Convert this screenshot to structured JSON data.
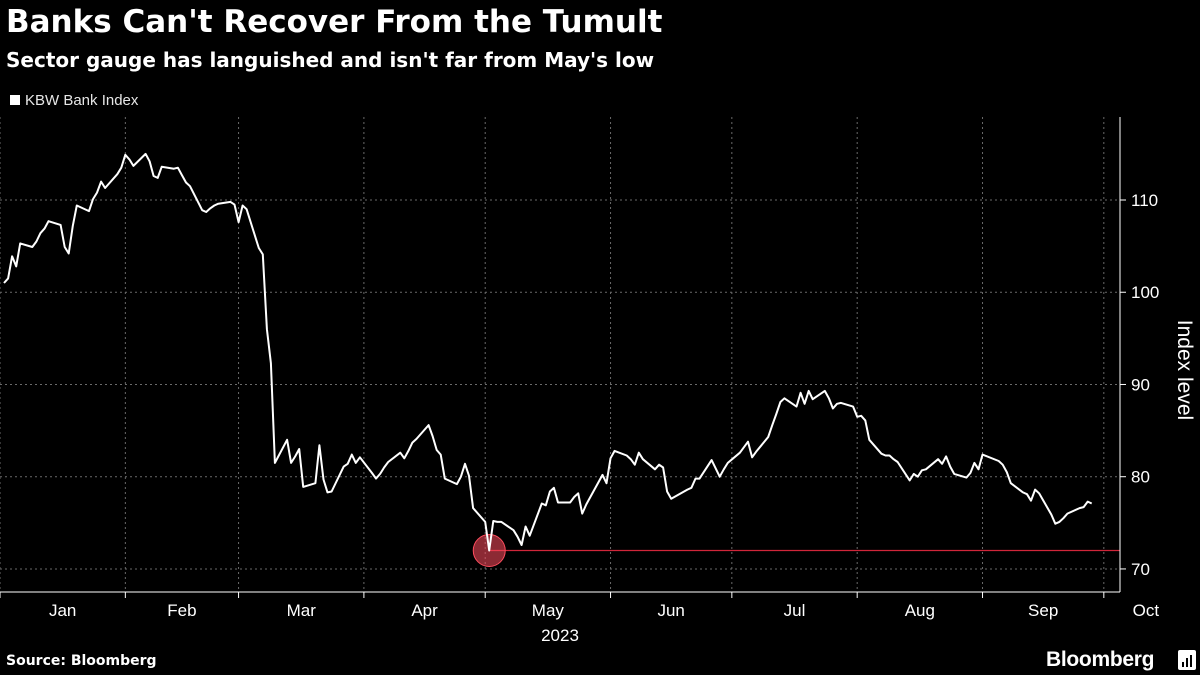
{
  "title": "Banks Can't Recover From the Tumult",
  "subtitle": "Sector gauge has languished and isn't far from May's low",
  "legend": {
    "label": "KBW Bank Index",
    "swatch_color": "#ffffff"
  },
  "footer": {
    "source": "Source: Bloomberg",
    "brand": "Bloomberg",
    "brand_icon": "bloomberg-terminal-icon"
  },
  "chart_data": {
    "type": "line",
    "title": "Banks Can't Recover From the Tumult",
    "subtitle": "Sector gauge has languished and isn't far from May's low",
    "series": [
      {
        "name": "KBW Bank Index",
        "color": "#ffffff",
        "points": [
          [
            "2023-01-02",
            101.0
          ],
          [
            "2023-01-03",
            101.5
          ],
          [
            "2023-01-04",
            103.9
          ],
          [
            "2023-01-05",
            102.8
          ],
          [
            "2023-01-06",
            105.3
          ],
          [
            "2023-01-09",
            104.9
          ],
          [
            "2023-01-10",
            105.5
          ],
          [
            "2023-01-11",
            106.4
          ],
          [
            "2023-01-12",
            106.9
          ],
          [
            "2023-01-13",
            107.7
          ],
          [
            "2023-01-16",
            107.3
          ],
          [
            "2023-01-17",
            104.9
          ],
          [
            "2023-01-18",
            104.2
          ],
          [
            "2023-01-19",
            107.2
          ],
          [
            "2023-01-20",
            109.4
          ],
          [
            "2023-01-23",
            108.8
          ],
          [
            "2023-01-24",
            110.1
          ],
          [
            "2023-01-25",
            110.8
          ],
          [
            "2023-01-26",
            112.0
          ],
          [
            "2023-01-27",
            111.3
          ],
          [
            "2023-01-30",
            112.8
          ],
          [
            "2023-01-31",
            113.5
          ],
          [
            "2023-02-01",
            114.9
          ],
          [
            "2023-02-02",
            114.4
          ],
          [
            "2023-02-03",
            113.7
          ],
          [
            "2023-02-06",
            115.0
          ],
          [
            "2023-02-07",
            114.2
          ],
          [
            "2023-02-08",
            112.6
          ],
          [
            "2023-02-09",
            112.4
          ],
          [
            "2023-02-10",
            113.6
          ],
          [
            "2023-02-13",
            113.4
          ],
          [
            "2023-02-14",
            113.5
          ],
          [
            "2023-02-15",
            112.7
          ],
          [
            "2023-02-16",
            111.9
          ],
          [
            "2023-02-17",
            111.5
          ],
          [
            "2023-02-20",
            108.9
          ],
          [
            "2023-02-21",
            108.7
          ],
          [
            "2023-02-22",
            109.1
          ],
          [
            "2023-02-23",
            109.4
          ],
          [
            "2023-02-24",
            109.6
          ],
          [
            "2023-02-27",
            109.8
          ],
          [
            "2023-02-28",
            109.5
          ],
          [
            "2023-03-01",
            107.6
          ],
          [
            "2023-03-02",
            109.4
          ],
          [
            "2023-03-03",
            109.0
          ],
          [
            "2023-03-06",
            104.8
          ],
          [
            "2023-03-07",
            104.1
          ],
          [
            "2023-03-08",
            96.0
          ],
          [
            "2023-03-09",
            92.3
          ],
          [
            "2023-03-10",
            81.5
          ],
          [
            "2023-03-13",
            84.0
          ],
          [
            "2023-03-14",
            81.5
          ],
          [
            "2023-03-15",
            82.2
          ],
          [
            "2023-03-16",
            83.0
          ],
          [
            "2023-03-17",
            78.9
          ],
          [
            "2023-03-20",
            79.3
          ],
          [
            "2023-03-21",
            83.4
          ],
          [
            "2023-03-22",
            79.7
          ],
          [
            "2023-03-23",
            78.3
          ],
          [
            "2023-03-24",
            78.4
          ],
          [
            "2023-03-27",
            81.1
          ],
          [
            "2023-03-28",
            81.4
          ],
          [
            "2023-03-29",
            82.4
          ],
          [
            "2023-03-30",
            81.5
          ],
          [
            "2023-03-31",
            82.1
          ],
          [
            "2023-04-03",
            80.4
          ],
          [
            "2023-04-04",
            79.8
          ],
          [
            "2023-04-05",
            80.3
          ],
          [
            "2023-04-06",
            81.0
          ],
          [
            "2023-04-07",
            81.6
          ],
          [
            "2023-04-10",
            82.6
          ],
          [
            "2023-04-11",
            82.0
          ],
          [
            "2023-04-12",
            82.8
          ],
          [
            "2023-04-13",
            83.7
          ],
          [
            "2023-04-14",
            84.1
          ],
          [
            "2023-04-17",
            85.6
          ],
          [
            "2023-04-18",
            84.4
          ],
          [
            "2023-04-19",
            82.9
          ],
          [
            "2023-04-20",
            82.4
          ],
          [
            "2023-04-21",
            79.8
          ],
          [
            "2023-04-24",
            79.2
          ],
          [
            "2023-04-25",
            80.0
          ],
          [
            "2023-04-26",
            81.4
          ],
          [
            "2023-04-27",
            80.1
          ],
          [
            "2023-04-28",
            76.6
          ],
          [
            "2023-05-01",
            75.1
          ],
          [
            "2023-05-02",
            72.0
          ],
          [
            "2023-05-03",
            75.2
          ],
          [
            "2023-05-04",
            75.1
          ],
          [
            "2023-05-05",
            75.1
          ],
          [
            "2023-05-08",
            74.2
          ],
          [
            "2023-05-09",
            73.5
          ],
          [
            "2023-05-10",
            72.6
          ],
          [
            "2023-05-11",
            74.6
          ],
          [
            "2023-05-12",
            73.6
          ],
          [
            "2023-05-15",
            77.1
          ],
          [
            "2023-05-16",
            76.9
          ],
          [
            "2023-05-17",
            78.4
          ],
          [
            "2023-05-18",
            78.8
          ],
          [
            "2023-05-19",
            77.2
          ],
          [
            "2023-05-22",
            77.2
          ],
          [
            "2023-05-23",
            77.8
          ],
          [
            "2023-05-24",
            78.2
          ],
          [
            "2023-05-25",
            76.0
          ],
          [
            "2023-05-26",
            77.0
          ],
          [
            "2023-05-30",
            80.2
          ],
          [
            "2023-05-31",
            79.3
          ],
          [
            "2023-06-01",
            82.0
          ],
          [
            "2023-06-02",
            82.8
          ],
          [
            "2023-06-05",
            82.3
          ],
          [
            "2023-06-06",
            81.9
          ],
          [
            "2023-06-07",
            81.3
          ],
          [
            "2023-06-08",
            82.6
          ],
          [
            "2023-06-09",
            81.9
          ],
          [
            "2023-06-12",
            80.8
          ],
          [
            "2023-06-13",
            81.3
          ],
          [
            "2023-06-14",
            81.0
          ],
          [
            "2023-06-15",
            78.4
          ],
          [
            "2023-06-16",
            77.6
          ],
          [
            "2023-06-20",
            78.6
          ],
          [
            "2023-06-21",
            78.8
          ],
          [
            "2023-06-22",
            79.8
          ],
          [
            "2023-06-23",
            79.8
          ],
          [
            "2023-06-26",
            81.8
          ],
          [
            "2023-06-27",
            80.9
          ],
          [
            "2023-06-28",
            80.0
          ],
          [
            "2023-06-29",
            80.8
          ],
          [
            "2023-06-30",
            81.5
          ],
          [
            "2023-07-03",
            82.6
          ],
          [
            "2023-07-05",
            83.8
          ],
          [
            "2023-07-06",
            82.1
          ],
          [
            "2023-07-07",
            82.7
          ],
          [
            "2023-07-10",
            84.3
          ],
          [
            "2023-07-11",
            85.6
          ],
          [
            "2023-07-12",
            86.8
          ],
          [
            "2023-07-13",
            88.1
          ],
          [
            "2023-07-14",
            88.5
          ],
          [
            "2023-07-17",
            87.6
          ],
          [
            "2023-07-18",
            89.1
          ],
          [
            "2023-07-19",
            87.9
          ],
          [
            "2023-07-20",
            89.3
          ],
          [
            "2023-07-21",
            88.4
          ],
          [
            "2023-07-24",
            89.3
          ],
          [
            "2023-07-25",
            88.5
          ],
          [
            "2023-07-26",
            87.4
          ],
          [
            "2023-07-27",
            87.9
          ],
          [
            "2023-07-28",
            88.0
          ],
          [
            "2023-07-31",
            87.6
          ],
          [
            "2023-08-01",
            86.5
          ],
          [
            "2023-08-02",
            86.6
          ],
          [
            "2023-08-03",
            86.1
          ],
          [
            "2023-08-04",
            84.0
          ],
          [
            "2023-08-07",
            82.5
          ],
          [
            "2023-08-08",
            82.3
          ],
          [
            "2023-08-09",
            82.3
          ],
          [
            "2023-08-10",
            81.9
          ],
          [
            "2023-08-11",
            81.6
          ],
          [
            "2023-08-14",
            79.6
          ],
          [
            "2023-08-15",
            80.3
          ],
          [
            "2023-08-16",
            80.0
          ],
          [
            "2023-08-17",
            80.7
          ],
          [
            "2023-08-18",
            80.8
          ],
          [
            "2023-08-21",
            81.9
          ],
          [
            "2023-08-22",
            81.4
          ],
          [
            "2023-08-23",
            82.2
          ],
          [
            "2023-08-24",
            81.1
          ],
          [
            "2023-08-25",
            80.3
          ],
          [
            "2023-08-28",
            79.9
          ],
          [
            "2023-08-29",
            80.4
          ],
          [
            "2023-08-30",
            81.5
          ],
          [
            "2023-08-31",
            80.8
          ],
          [
            "2023-09-01",
            82.4
          ],
          [
            "2023-09-05",
            81.7
          ],
          [
            "2023-09-06",
            81.3
          ],
          [
            "2023-09-07",
            80.5
          ],
          [
            "2023-09-08",
            79.3
          ],
          [
            "2023-09-11",
            78.3
          ],
          [
            "2023-09-12",
            78.1
          ],
          [
            "2023-09-13",
            77.4
          ],
          [
            "2023-09-14",
            78.6
          ],
          [
            "2023-09-15",
            78.2
          ],
          [
            "2023-09-18",
            75.9
          ],
          [
            "2023-09-19",
            74.9
          ],
          [
            "2023-09-20",
            75.1
          ],
          [
            "2023-09-21",
            75.5
          ],
          [
            "2023-09-22",
            76.0
          ],
          [
            "2023-09-25",
            76.6
          ],
          [
            "2023-09-26",
            76.7
          ],
          [
            "2023-09-27",
            77.3
          ],
          [
            "2023-09-28",
            77.1
          ]
        ]
      }
    ],
    "annotations": [
      {
        "type": "horizontal-line",
        "y": 72.0,
        "from": "2023-05-02",
        "color": "#d0263a",
        "label": ""
      },
      {
        "type": "circle-marker",
        "x": "2023-05-02",
        "y": 72.0,
        "color": "#ff4d5e"
      }
    ],
    "x_axis": {
      "type": "date",
      "range": [
        "2023-01-01",
        "2023-10-05"
      ],
      "ticks": [
        "2023-01-01",
        "2023-02-01",
        "2023-03-01",
        "2023-04-01",
        "2023-05-01",
        "2023-06-01",
        "2023-07-01",
        "2023-08-01",
        "2023-09-01",
        "2023-10-01"
      ],
      "tick_labels": [
        "Jan",
        "Feb",
        "Mar",
        "Apr",
        "May",
        "Jun",
        "Jul",
        "Aug",
        "Sep",
        "Oct"
      ],
      "year_label": "2023"
    },
    "y_axis": {
      "side": "right",
      "label": "Index level",
      "range": [
        67.5,
        119
      ],
      "ticks": [
        70,
        80,
        90,
        100,
        110
      ]
    },
    "grid": true,
    "legend_position": "top-left"
  }
}
